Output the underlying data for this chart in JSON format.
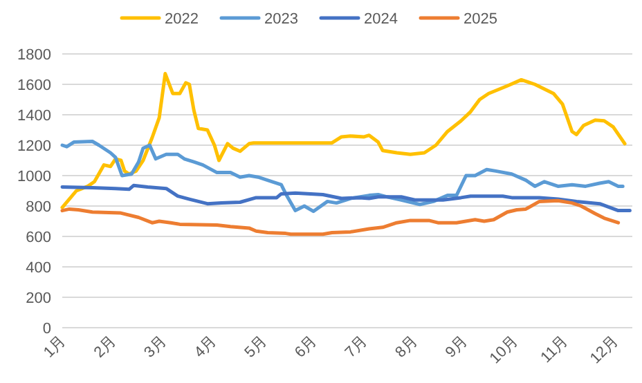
{
  "chart_data": {
    "type": "line",
    "grid": "y",
    "legend": "top",
    "xlim": [
      1,
      12.35
    ],
    "xticks": [
      {
        "value": 1,
        "label": "1月"
      },
      {
        "value": 2,
        "label": "2月"
      },
      {
        "value": 3,
        "label": "3月"
      },
      {
        "value": 4,
        "label": "4月"
      },
      {
        "value": 5,
        "label": "5月"
      },
      {
        "value": 6,
        "label": "6月"
      },
      {
        "value": 7,
        "label": "7月"
      },
      {
        "value": 8,
        "label": "8月"
      },
      {
        "value": 9,
        "label": "9月"
      },
      {
        "value": 10,
        "label": "10月"
      },
      {
        "value": 11,
        "label": "11月"
      },
      {
        "value": 12,
        "label": "12月"
      }
    ],
    "ylim": [
      0,
      1800
    ],
    "yticks": [
      0,
      200,
      400,
      600,
      800,
      1000,
      1200,
      1400,
      1600,
      1800
    ],
    "series": [
      {
        "name": "2022",
        "color": "#ffc000",
        "x": [
          1.0,
          1.28,
          1.51,
          1.64,
          1.83,
          1.96,
          2.06,
          2.17,
          2.24,
          2.33,
          2.47,
          2.61,
          2.79,
          2.93,
          3.05,
          3.2,
          3.34,
          3.46,
          3.53,
          3.62,
          3.71,
          3.89,
          4.03,
          4.12,
          4.29,
          4.4,
          4.54,
          4.72,
          4.81,
          6.37,
          6.56,
          6.74,
          7.01,
          7.11,
          7.29,
          7.38,
          7.66,
          7.93,
          8.21,
          8.44,
          8.67,
          8.94,
          9.13,
          9.31,
          9.49,
          9.86,
          10.14,
          10.41,
          10.78,
          10.96,
          11.15,
          11.24,
          11.38,
          11.61,
          11.79,
          11.97,
          12.2
        ],
        "values": [
          790,
          900,
          930,
          960,
          1070,
          1060,
          1110,
          1100,
          1030,
          1010,
          1030,
          1100,
          1250,
          1380,
          1670,
          1540,
          1540,
          1610,
          1600,
          1430,
          1310,
          1300,
          1200,
          1100,
          1210,
          1180,
          1160,
          1210,
          1215,
          1215,
          1255,
          1260,
          1255,
          1265,
          1220,
          1165,
          1150,
          1140,
          1150,
          1200,
          1290,
          1360,
          1420,
          1500,
          1540,
          1590,
          1630,
          1600,
          1540,
          1470,
          1290,
          1270,
          1330,
          1365,
          1360,
          1320,
          1210
        ]
      },
      {
        "name": "2023",
        "color": "#5b9bd5",
        "x": [
          1.0,
          1.09,
          1.23,
          1.6,
          1.73,
          1.96,
          2.06,
          2.19,
          2.38,
          2.52,
          2.61,
          2.74,
          2.86,
          3.07,
          3.3,
          3.43,
          3.62,
          3.8,
          4.08,
          4.35,
          4.54,
          4.72,
          4.9,
          5.18,
          5.36,
          5.45,
          5.64,
          5.82,
          6.0,
          6.28,
          6.46,
          6.74,
          7.11,
          7.29,
          7.47,
          7.75,
          8.12,
          8.39,
          8.67,
          8.85,
          9.04,
          9.22,
          9.45,
          9.63,
          9.95,
          10.23,
          10.41,
          10.6,
          10.87,
          11.15,
          11.42,
          11.7,
          11.88,
          12.07,
          12.16
        ],
        "values": [
          1200,
          1190,
          1220,
          1225,
          1200,
          1150,
          1120,
          1000,
          1010,
          1090,
          1180,
          1200,
          1110,
          1140,
          1140,
          1110,
          1090,
          1070,
          1020,
          1020,
          990,
          1000,
          990,
          960,
          940,
          880,
          770,
          800,
          765,
          830,
          820,
          850,
          870,
          875,
          860,
          840,
          810,
          830,
          870,
          870,
          1000,
          1000,
          1040,
          1030,
          1010,
          970,
          930,
          960,
          930,
          940,
          930,
          950,
          960,
          930,
          930
        ]
      },
      {
        "name": "2024",
        "color": "#4472c4",
        "x": [
          1.0,
          1.6,
          2.06,
          2.33,
          2.42,
          2.7,
          3.07,
          3.3,
          3.53,
          3.89,
          4.17,
          4.54,
          4.86,
          5.27,
          5.36,
          5.64,
          6.19,
          6.56,
          6.92,
          7.11,
          7.29,
          7.75,
          8.02,
          8.58,
          8.94,
          9.13,
          9.77,
          9.95,
          10.5,
          10.87,
          11.24,
          11.7,
          12.07,
          12.3
        ],
        "values": [
          925,
          920,
          915,
          910,
          935,
          925,
          915,
          865,
          845,
          815,
          820,
          825,
          855,
          855,
          880,
          885,
          875,
          850,
          855,
          850,
          860,
          860,
          840,
          840,
          855,
          865,
          865,
          855,
          855,
          845,
          830,
          815,
          770,
          770
        ]
      },
      {
        "name": "2025",
        "color": "#ed7d31",
        "x": [
          1.0,
          1.14,
          1.32,
          1.6,
          2.15,
          2.52,
          2.79,
          2.93,
          3.16,
          3.34,
          4.08,
          4.35,
          4.72,
          4.86,
          5.09,
          5.45,
          5.55,
          6.19,
          6.37,
          6.74,
          7.11,
          7.38,
          7.66,
          7.93,
          8.3,
          8.48,
          8.85,
          9.22,
          9.4,
          9.59,
          9.86,
          10.05,
          10.23,
          10.5,
          10.87,
          11.15,
          11.33,
          11.61,
          11.79,
          12.07
        ],
        "values": [
          770,
          780,
          775,
          760,
          755,
          725,
          690,
          700,
          690,
          680,
          675,
          665,
          655,
          635,
          625,
          620,
          615,
          615,
          625,
          630,
          650,
          660,
          690,
          705,
          705,
          690,
          690,
          710,
          700,
          710,
          760,
          775,
          780,
          830,
          835,
          820,
          800,
          750,
          720,
          690
        ]
      }
    ]
  }
}
